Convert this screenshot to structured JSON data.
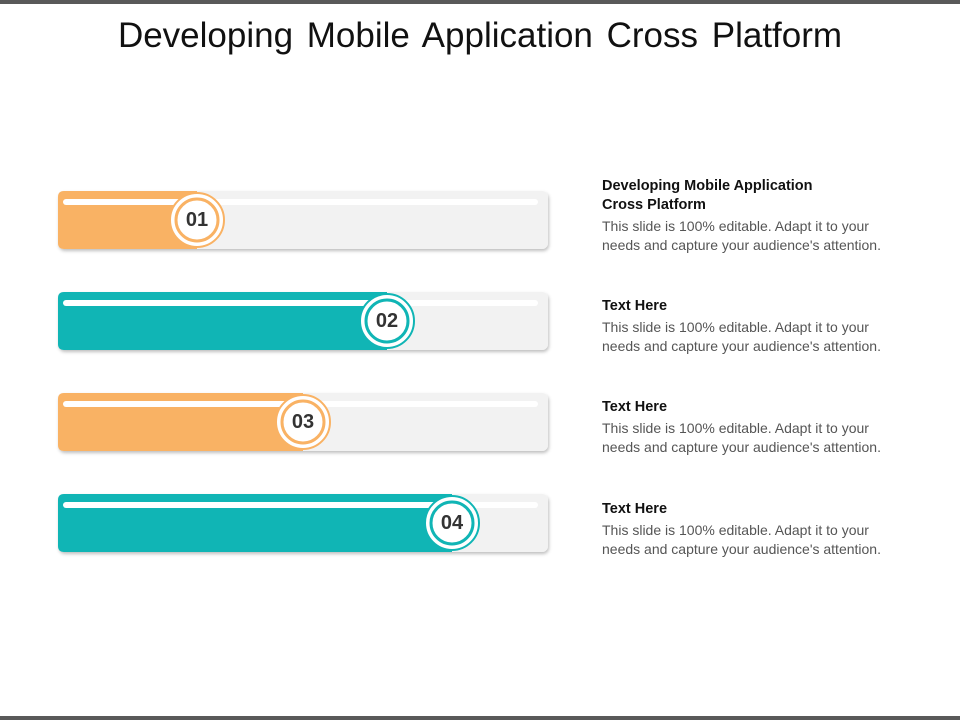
{
  "title": "Developing Mobile Application Cross Platform",
  "items": [
    {
      "number": "01",
      "heading": "Developing Mobile Application Cross Platform",
      "text": "This slide is 100% editable. Adapt it to your needs and capture your audience's attention."
    },
    {
      "number": "02",
      "heading": "Text Here",
      "text": "This slide is 100% editable. Adapt it to your needs and capture your audience's attention."
    },
    {
      "number": "03",
      "heading": "Text Here",
      "text": "This slide is 100% editable. Adapt it to your needs and capture your audience's attention."
    },
    {
      "number": "04",
      "heading": "Text Here",
      "text": "This slide is 100% editable. Adapt it to your needs and capture your audience's attention."
    }
  ]
}
